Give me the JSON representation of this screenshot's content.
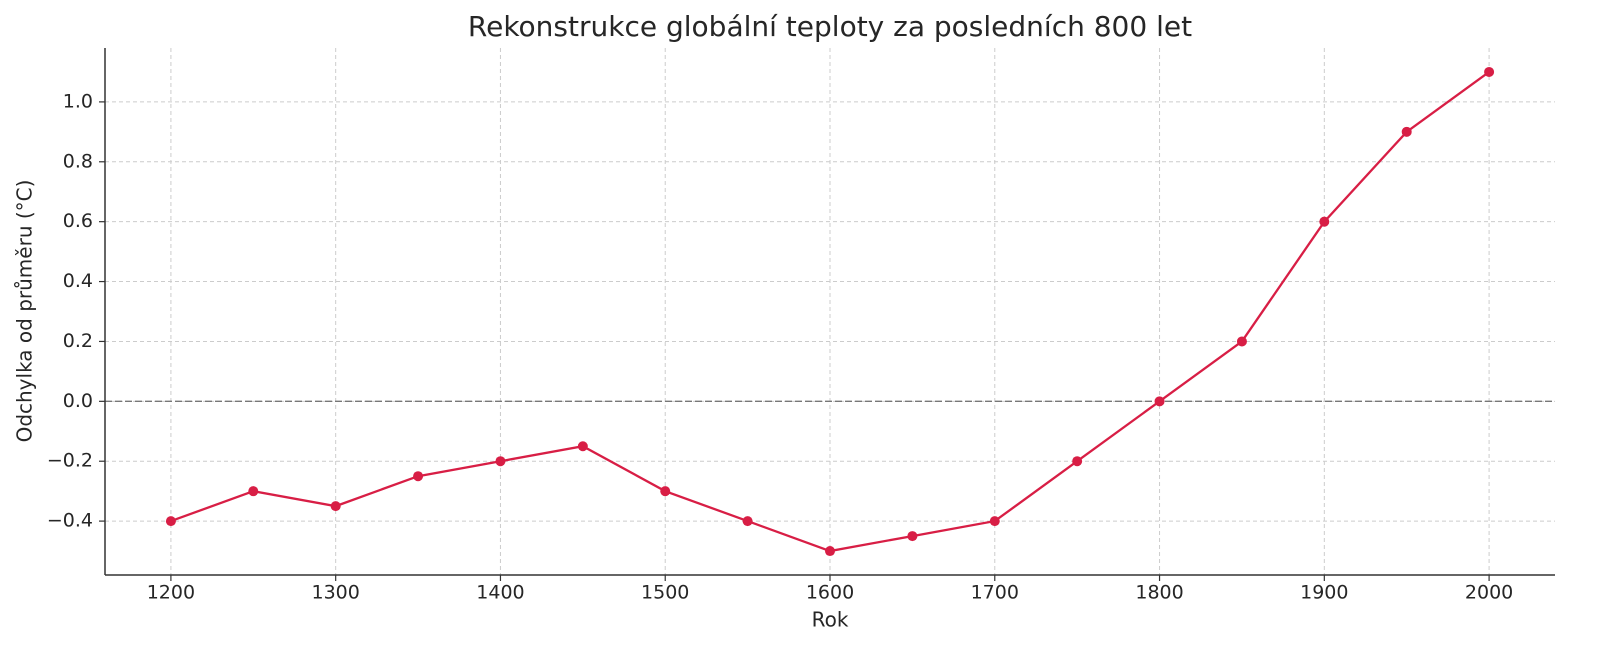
{
  "chart_data": {
    "type": "line",
    "title": "Rekonstrukce globální teploty za posledních 800 let",
    "x_label": "Rok",
    "y_label": "Odchylka od průměru (°C)",
    "x": [
      1200,
      1250,
      1300,
      1350,
      1400,
      1450,
      1500,
      1550,
      1600,
      1650,
      1700,
      1750,
      1800,
      1850,
      1900,
      1950,
      2000
    ],
    "values": [
      -0.4,
      -0.3,
      -0.35,
      -0.25,
      -0.2,
      -0.15,
      -0.3,
      -0.4,
      -0.5,
      -0.45,
      -0.4,
      -0.2,
      0.0,
      0.2,
      0.6,
      0.9,
      1.1
    ],
    "color": "#d81e45",
    "xlim": [
      1160,
      2040
    ],
    "ylim": [
      -0.58,
      1.18
    ],
    "xticks": [
      1200,
      1300,
      1400,
      1500,
      1600,
      1700,
      1800,
      1900,
      2000
    ],
    "yticks": [
      {
        "value": -0.4,
        "label": "−0.4"
      },
      {
        "value": -0.2,
        "label": "−0.2"
      },
      {
        "value": 0,
        "label": "0.0"
      },
      0.2,
      0.4,
      0.6,
      0.8,
      {
        "value": 1,
        "label": "1.0"
      }
    ],
    "grid": true,
    "reference_line": 0
  }
}
